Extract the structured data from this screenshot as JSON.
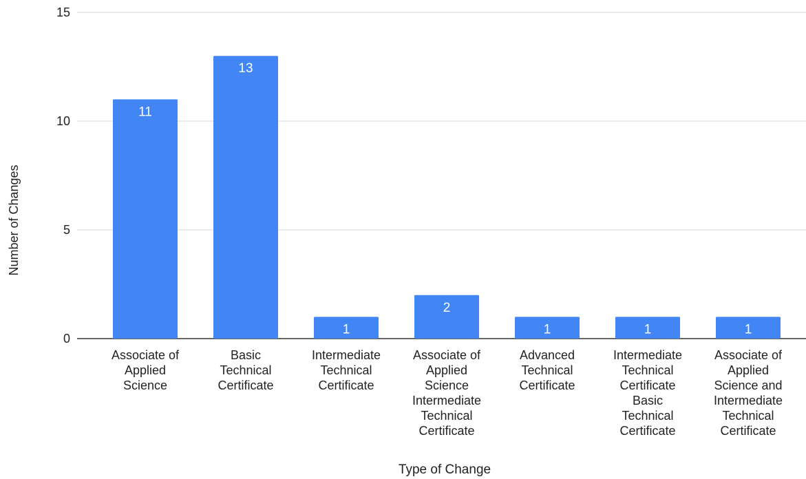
{
  "chart_data": {
    "type": "bar",
    "title": "",
    "xlabel": "Type of Change",
    "ylabel": "Number of Changes",
    "ylim": [
      0,
      15
    ],
    "yticks": [
      0,
      5,
      10,
      15
    ],
    "grid": true,
    "legend": "none",
    "bar_color": "#4285f4",
    "grid_color": "#d9d9d9",
    "baseline_color": "#333333",
    "label_color": "#ffffff",
    "categories": [
      [
        "Associate of",
        "Applied",
        "Science"
      ],
      [
        "Basic",
        "Technical",
        "Certificate"
      ],
      [
        "Intermediate",
        "Technical",
        "Certificate"
      ],
      [
        "Associate of",
        "Applied",
        "Science",
        "Intermediate",
        "Technical",
        "Certificate"
      ],
      [
        "Advanced",
        "Technical",
        "Certificate"
      ],
      [
        "Intermediate",
        "Technical",
        "Certificate",
        "Basic",
        "Technical",
        "Certificate"
      ],
      [
        "Associate of",
        "Applied",
        "Science and",
        "Intermediate",
        "Technical",
        "Certificate"
      ]
    ],
    "values": [
      11,
      13,
      1,
      2,
      1,
      1,
      1
    ],
    "data_labels": [
      "11",
      "13",
      "1",
      "2",
      "1",
      "1",
      "1"
    ]
  }
}
